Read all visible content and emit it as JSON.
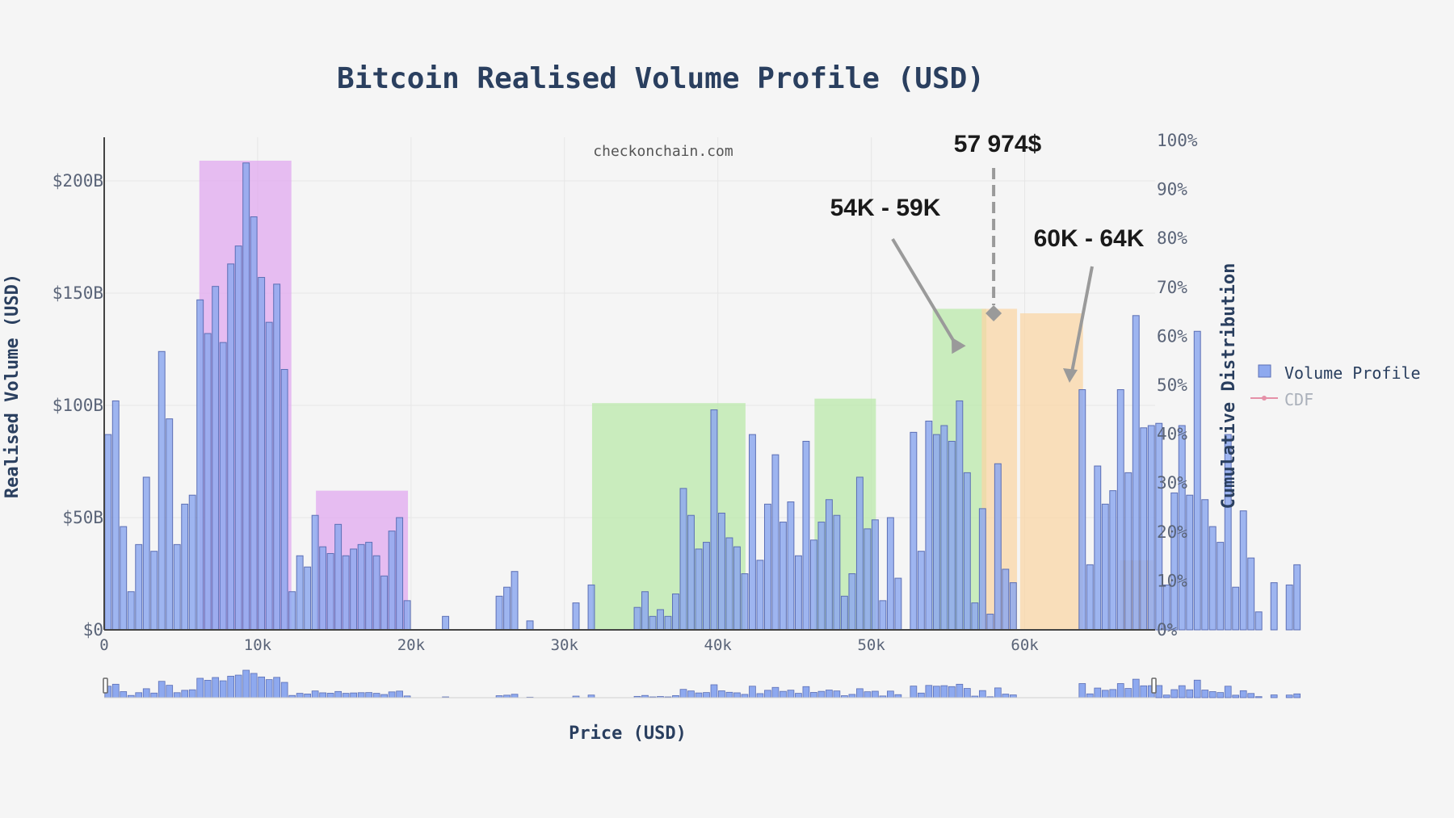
{
  "chart_data": {
    "type": "bar",
    "title": "Bitcoin Realised Volume Profile (USD)",
    "watermark": "checkonchain.com",
    "xlabel": "Price (USD)",
    "ylabel": "Realised Volume (USD)",
    "y2label": "Cumulative Distribution",
    "xlim": [
      0,
      68500
    ],
    "ylim": [
      0,
      215
    ],
    "y2lim": [
      0,
      100
    ],
    "x_ticks": [
      0,
      10000,
      20000,
      30000,
      40000,
      50000,
      60000
    ],
    "x_tick_labels": [
      "0",
      "10k",
      "20k",
      "30k",
      "40k",
      "50k",
      "60k"
    ],
    "y_ticks": [
      0,
      50,
      100,
      150,
      200
    ],
    "y_tick_labels": [
      "$0",
      "$50B",
      "$100B",
      "$150B",
      "$200B"
    ],
    "y2_ticks": [
      0,
      10,
      20,
      30,
      40,
      50,
      60,
      70,
      80,
      90,
      100
    ],
    "y2_tick_labels": [
      "0%",
      "10%",
      "20%",
      "30%",
      "40%",
      "50%",
      "60%",
      "70%",
      "80%",
      "90%",
      "100%"
    ],
    "bin_width": 500,
    "bar_color": "#8ea9ef",
    "bar_edge": "#5c6fb5",
    "legend": {
      "position": "right",
      "entries": [
        {
          "name": "Volume Profile",
          "color": "#8ea9ef"
        },
        {
          "name": "CDF",
          "color": "#e591a8"
        }
      ]
    },
    "series": [
      {
        "name": "Volume Profile",
        "values": [
          87,
          102,
          46,
          17,
          38,
          68,
          35,
          124,
          94,
          38,
          56,
          60,
          147,
          132,
          153,
          128,
          163,
          171,
          208,
          184,
          157,
          137,
          154,
          116,
          17,
          33,
          28,
          51,
          37,
          34,
          47,
          33,
          36,
          38,
          39,
          33,
          24,
          44,
          50,
          13,
          0,
          0,
          0,
          0,
          6,
          0,
          0,
          0,
          0,
          0,
          0,
          15,
          19,
          26,
          0,
          4,
          0,
          0,
          0,
          0,
          0,
          12,
          0,
          20,
          0,
          0,
          0,
          0,
          0,
          10,
          17,
          6,
          9,
          6,
          16,
          63,
          51,
          36,
          39,
          98,
          52,
          41,
          37,
          25,
          87,
          31,
          56,
          78,
          48,
          57,
          33,
          84,
          40,
          48,
          58,
          51,
          15,
          25,
          68,
          45,
          49,
          13,
          50,
          23,
          0,
          88,
          35,
          93,
          87,
          91,
          84,
          102,
          70,
          12,
          54,
          7,
          74,
          27,
          21,
          0,
          0,
          0,
          0,
          0,
          0,
          0,
          0,
          107,
          29,
          73,
          56,
          62,
          107,
          70,
          140,
          90,
          91,
          92,
          20,
          61,
          91,
          60,
          133,
          58,
          46,
          39,
          87,
          19,
          53,
          32,
          8,
          0,
          21,
          0,
          20,
          29
        ]
      }
    ],
    "highlight_zones": [
      {
        "x0": 6200,
        "x1": 12200,
        "y_top": 209,
        "color": "#e0a8ef"
      },
      {
        "x0": 13800,
        "x1": 19800,
        "y_top": 62,
        "color": "#e0a8ef"
      },
      {
        "x0": 31800,
        "x1": 41800,
        "y_top": 101,
        "color": "#b9e8a9"
      },
      {
        "x0": 46300,
        "x1": 50300,
        "y_top": 103,
        "color": "#b9e8a9"
      },
      {
        "x0": 54000,
        "x1": 57500,
        "y_top": 143,
        "color": "#b9e8a9"
      },
      {
        "x0": 57200,
        "x1": 59500,
        "y_top": 143,
        "color": "#f9d5a6"
      },
      {
        "x0": 59700,
        "x1": 63800,
        "y_top": 141,
        "color": "#f9d5a6"
      },
      {
        "x0": 66200,
        "x1": 68400,
        "y_top": 31,
        "color": "#f9d5a6"
      }
    ],
    "annotations": [
      {
        "text": "57 974$",
        "x": 57974,
        "y": 140
      },
      {
        "text": "54K - 59K",
        "x": 55500,
        "y": 124
      },
      {
        "text": "60K - 64K",
        "x": 62500,
        "y": 109
      }
    ]
  }
}
